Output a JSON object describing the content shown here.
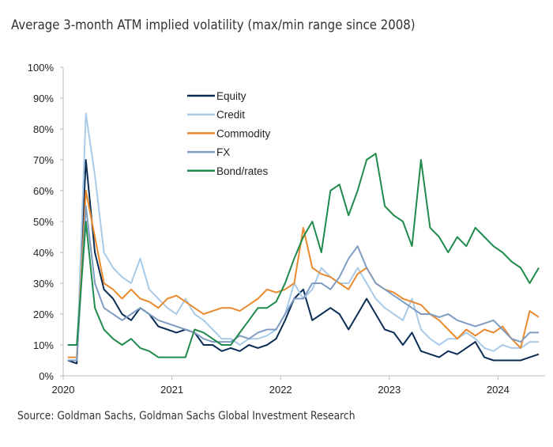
{
  "chart_data": {
    "type": "line",
    "title": "Average 3-month ATM implied volatility (max/min range since 2008)",
    "source": "Source: Goldman Sachs, Goldman Sachs Global Investment Research",
    "xlabel": "",
    "ylabel": "",
    "ylim": [
      0,
      100
    ],
    "yticks": [
      "0%",
      "10%",
      "20%",
      "30%",
      "40%",
      "50%",
      "60%",
      "70%",
      "80%",
      "90%",
      "100%"
    ],
    "xticks": [
      "2020",
      "2021",
      "2022",
      "2023",
      "2024"
    ],
    "grid": false,
    "legend_position": "top-center",
    "x": [
      "2020-01",
      "2020-02",
      "2020-03",
      "2020-04",
      "2020-05",
      "2020-06",
      "2020-07",
      "2020-08",
      "2020-09",
      "2020-10",
      "2020-11",
      "2020-12",
      "2021-01",
      "2021-02",
      "2021-03",
      "2021-04",
      "2021-05",
      "2021-06",
      "2021-07",
      "2021-08",
      "2021-09",
      "2021-10",
      "2021-11",
      "2021-12",
      "2022-01",
      "2022-02",
      "2022-03",
      "2022-04",
      "2022-05",
      "2022-06",
      "2022-07",
      "2022-08",
      "2022-09",
      "2022-10",
      "2022-11",
      "2022-12",
      "2023-01",
      "2023-02",
      "2023-03",
      "2023-04",
      "2023-05",
      "2023-06",
      "2023-07",
      "2023-08",
      "2023-09",
      "2023-10",
      "2023-11",
      "2023-12",
      "2024-01",
      "2024-02",
      "2024-03",
      "2024-04",
      "2024-05"
    ],
    "series": [
      {
        "name": "Equity",
        "color": "#0b2d55",
        "values": [
          5,
          4,
          70,
          40,
          28,
          25,
          20,
          18,
          22,
          20,
          16,
          15,
          14,
          15,
          14,
          10,
          10,
          8,
          9,
          8,
          10,
          9,
          10,
          12,
          18,
          25,
          28,
          18,
          20,
          22,
          20,
          15,
          20,
          25,
          20,
          15,
          14,
          10,
          14,
          8,
          7,
          6,
          8,
          7,
          9,
          11,
          6,
          5,
          5,
          5,
          5,
          6,
          7
        ]
      },
      {
        "name": "Credit",
        "color": "#a9cbe8",
        "values": [
          5,
          5,
          85,
          65,
          40,
          35,
          32,
          30,
          38,
          28,
          25,
          22,
          20,
          25,
          20,
          18,
          15,
          12,
          12,
          10,
          12,
          12,
          13,
          15,
          20,
          30,
          25,
          28,
          35,
          32,
          30,
          30,
          35,
          30,
          25,
          22,
          20,
          18,
          25,
          15,
          12,
          10,
          12,
          12,
          14,
          12,
          9,
          8,
          10,
          9,
          9,
          11,
          11
        ]
      },
      {
        "name": "Commodity",
        "color": "#e98a2e",
        "values": [
          6,
          6,
          60,
          45,
          30,
          28,
          25,
          28,
          25,
          24,
          22,
          25,
          26,
          24,
          22,
          20,
          21,
          22,
          22,
          21,
          23,
          25,
          28,
          27,
          28,
          30,
          48,
          35,
          33,
          32,
          30,
          28,
          33,
          35,
          30,
          28,
          27,
          25,
          24,
          23,
          20,
          18,
          15,
          12,
          15,
          13,
          15,
          14,
          16,
          12,
          9,
          21,
          19
        ]
      },
      {
        "name": "FX",
        "color": "#7f9cc2",
        "values": [
          5,
          5,
          55,
          30,
          22,
          20,
          18,
          20,
          22,
          20,
          18,
          17,
          16,
          15,
          14,
          12,
          11,
          11,
          11,
          13,
          12,
          14,
          15,
          15,
          20,
          25,
          25,
          30,
          30,
          28,
          32,
          38,
          42,
          35,
          30,
          28,
          26,
          24,
          22,
          20,
          20,
          19,
          20,
          18,
          17,
          16,
          17,
          18,
          15,
          12,
          11,
          14,
          14
        ]
      },
      {
        "name": "Bond/rates",
        "color": "#1f8a4c",
        "values": [
          10,
          10,
          50,
          22,
          15,
          12,
          10,
          12,
          9,
          8,
          6,
          6,
          6,
          6,
          15,
          14,
          12,
          10,
          10,
          14,
          18,
          22,
          22,
          24,
          30,
          38,
          45,
          50,
          40,
          60,
          62,
          52,
          60,
          70,
          72,
          55,
          52,
          50,
          42,
          70,
          48,
          45,
          40,
          45,
          42,
          48,
          45,
          42,
          40,
          37,
          35,
          30,
          35
        ]
      }
    ]
  }
}
